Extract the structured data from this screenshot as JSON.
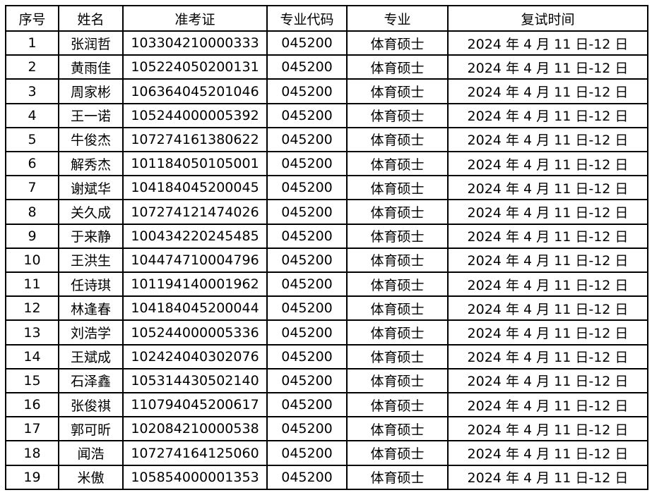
{
  "table": {
    "columns": [
      "序号",
      "姓名",
      "准考证",
      "专业代码",
      "专业",
      "复试时间"
    ],
    "rows": [
      [
        "1",
        "张润哲",
        "103304210000333",
        "045200",
        "体育硕士",
        "2024 年 4 月 11 日-12 日"
      ],
      [
        "2",
        "黄雨佳",
        "105224050200131",
        "045200",
        "体育硕士",
        "2024 年 4 月 11 日-12 日"
      ],
      [
        "3",
        "周家彬",
        "106364045201046",
        "045200",
        "体育硕士",
        "2024 年 4 月 11 日-12 日"
      ],
      [
        "4",
        "王一诺",
        "105244000005392",
        "045200",
        "体育硕士",
        "2024 年 4 月 11 日-12 日"
      ],
      [
        "5",
        "牛俊杰",
        "107274161380622",
        "045200",
        "体育硕士",
        "2024 年 4 月 11 日-12 日"
      ],
      [
        "6",
        "解秀杰",
        "101184050105001",
        "045200",
        "体育硕士",
        "2024 年 4 月 11 日-12 日"
      ],
      [
        "7",
        "谢斌华",
        "104184045200045",
        "045200",
        "体育硕士",
        "2024 年 4 月 11 日-12 日"
      ],
      [
        "8",
        "关久成",
        "107274121474026",
        "045200",
        "体育硕士",
        "2024 年 4 月 11 日-12 日"
      ],
      [
        "9",
        "于来静",
        "100434220245485",
        "045200",
        "体育硕士",
        "2024 年 4 月 11 日-12 日"
      ],
      [
        "10",
        "王洪生",
        "104474710004796",
        "045200",
        "体育硕士",
        "2024 年 4 月 11 日-12 日"
      ],
      [
        "11",
        "任诗琪",
        "101194140001962",
        "045200",
        "体育硕士",
        "2024 年 4 月 11 日-12 日"
      ],
      [
        "12",
        "林逢春",
        "104184045200044",
        "045200",
        "体育硕士",
        "2024 年 4 月 11 日-12 日"
      ],
      [
        "13",
        "刘浩学",
        "105244000005336",
        "045200",
        "体育硕士",
        "2024 年 4 月 11 日-12 日"
      ],
      [
        "14",
        "王斌成",
        "102424040302076",
        "045200",
        "体育硕士",
        "2024 年 4 月 11 日-12 日"
      ],
      [
        "15",
        "石泽鑫",
        "105314430502140",
        "045200",
        "体育硕士",
        "2024 年 4 月 11 日-12 日"
      ],
      [
        "16",
        "张俊祺",
        "110794045200617",
        "045200",
        "体育硕士",
        "2024 年 4 月 11 日-12 日"
      ],
      [
        "17",
        "郭可昕",
        "102084210000538",
        "045200",
        "体育硕士",
        "2024 年 4 月 11 日-12 日"
      ],
      [
        "18",
        "闻浩",
        "107274164125060",
        "045200",
        "体育硕士",
        "2024 年 4 月 11 日-12 日"
      ],
      [
        "19",
        "米傲",
        "105854000001353",
        "045200",
        "体育硕士",
        "2024 年 4 月 11 日-12 日"
      ]
    ]
  }
}
